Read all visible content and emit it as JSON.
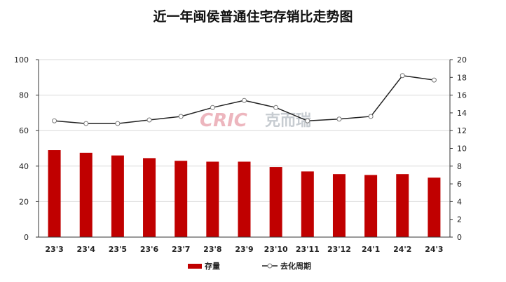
{
  "chart_data": {
    "type": "bar",
    "title": "近一年闽侯普通住宅存销比走势图",
    "categories": [
      "23'3",
      "23'4",
      "23'5",
      "23'6",
      "23'7",
      "23'8",
      "23'9",
      "23'10",
      "23'11",
      "23'12",
      "24'1",
      "24'2",
      "24'3"
    ],
    "series": [
      {
        "name": "存量",
        "type": "bar",
        "axis": "left",
        "color": "#c00000",
        "values": [
          49,
          47.5,
          46,
          44.5,
          43,
          42.5,
          42.5,
          39.5,
          37,
          35.5,
          35,
          35.5,
          33.5
        ]
      },
      {
        "name": "去化周期",
        "type": "line",
        "axis": "right",
        "color": "#222222",
        "values": [
          13.1,
          12.8,
          12.8,
          13.2,
          13.6,
          14.6,
          15.4,
          14.6,
          13.1,
          13.3,
          13.6,
          18.2,
          17.7
        ]
      }
    ],
    "left_axis": {
      "min": 0,
      "max": 100,
      "ticks": [
        0,
        20,
        40,
        60,
        80,
        100
      ]
    },
    "right_axis": {
      "min": 0,
      "max": 20,
      "ticks": [
        0,
        2,
        4,
        6,
        8,
        10,
        12,
        14,
        16,
        18,
        20
      ]
    },
    "grid": "horizontal",
    "legend_position": "bottom"
  },
  "watermark": {
    "latin": "CRIC",
    "chinese": "克而瑞",
    "color": "#e07b8a"
  }
}
